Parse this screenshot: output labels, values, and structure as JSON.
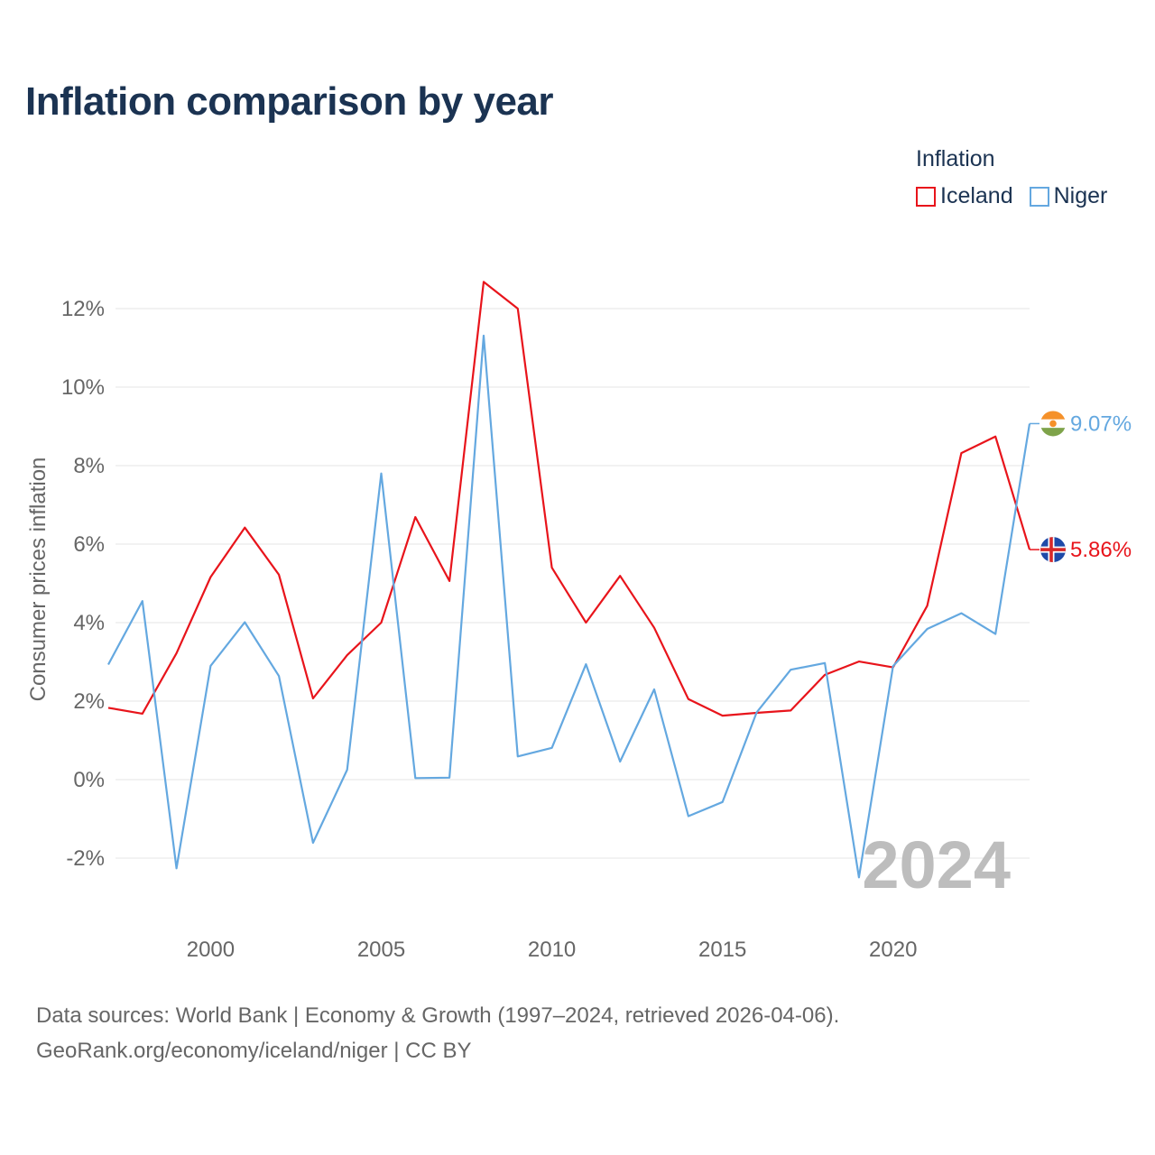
{
  "title": "Inflation comparison by year",
  "legend": {
    "title": "Inflation",
    "items": [
      {
        "name": "Iceland",
        "color": "#e8141b"
      },
      {
        "name": "Niger",
        "color": "#64a8e0"
      }
    ]
  },
  "source": {
    "line1": "Data sources: World Bank | Economy & Growth (1997–2024, retrieved 2026-04-06).",
    "line2": "GeoRank.org/economy/iceland/niger | CC BY"
  },
  "chart_data": {
    "type": "line",
    "title": "Inflation comparison by year",
    "xlabel": "",
    "ylabel": "Consumer prices inflation",
    "x": [
      1997,
      1998,
      1999,
      2000,
      2001,
      2002,
      2003,
      2004,
      2005,
      2006,
      2007,
      2008,
      2009,
      2010,
      2011,
      2012,
      2013,
      2014,
      2015,
      2016,
      2017,
      2018,
      2019,
      2020,
      2021,
      2022,
      2023,
      2024
    ],
    "xlim": [
      1997,
      2024
    ],
    "ylim": [
      -3,
      13
    ],
    "y_ticks": [
      -2,
      0,
      2,
      4,
      6,
      8,
      10,
      12
    ],
    "y_tick_labels": [
      "-2%",
      "0%",
      "2%",
      "4%",
      "6%",
      "8%",
      "10%",
      "12%"
    ],
    "x_ticks": [
      2000,
      2005,
      2010,
      2015,
      2020
    ],
    "x_tick_labels": [
      "2000",
      "2005",
      "2010",
      "2015",
      "2020"
    ],
    "grid": true,
    "year_watermark": "2024",
    "series": [
      {
        "name": "Iceland",
        "color": "#e8141b",
        "end_label": "5.86%",
        "flag": "iceland-flag",
        "values": [
          1.83,
          1.68,
          3.22,
          5.16,
          6.42,
          5.22,
          2.07,
          3.17,
          4.0,
          6.69,
          5.06,
          12.68,
          12.0,
          5.4,
          4.0,
          5.19,
          3.87,
          2.05,
          1.63,
          1.7,
          1.76,
          2.67,
          3.01,
          2.86,
          4.43,
          8.32,
          8.74,
          5.86
        ]
      },
      {
        "name": "Niger",
        "color": "#64a8e0",
        "end_label": "9.07%",
        "flag": "niger-flag",
        "values": [
          2.93,
          4.55,
          -2.26,
          2.9,
          4.01,
          2.64,
          -1.61,
          0.25,
          7.8,
          0.04,
          0.05,
          11.31,
          0.59,
          0.81,
          2.94,
          0.46,
          2.3,
          -0.93,
          -0.57,
          1.71,
          2.8,
          2.97,
          -2.49,
          2.89,
          3.84,
          4.24,
          3.71,
          9.07
        ]
      }
    ]
  }
}
